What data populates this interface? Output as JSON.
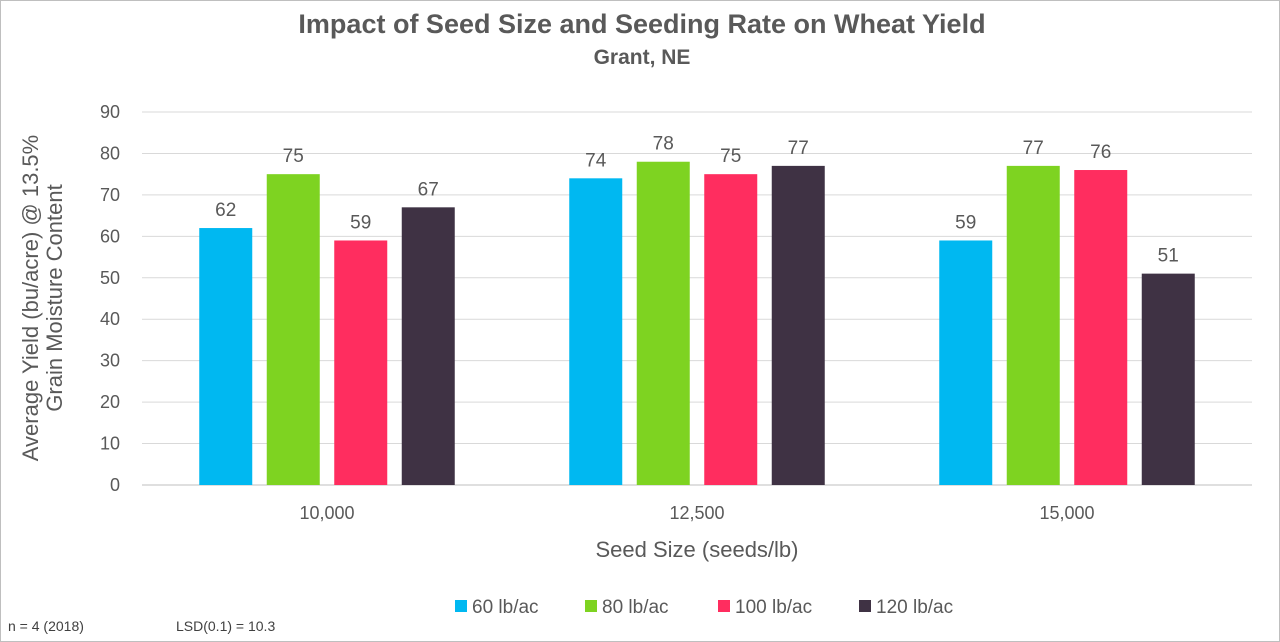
{
  "chart_data": {
    "type": "bar",
    "title": "Impact of Seed Size and Seeding Rate on Wheat Yield",
    "subtitle": "Grant, NE",
    "xlabel": "Seed Size (seeds/lb)",
    "ylabel_line1": "Average Yield (bu/acre) @ 13.5%",
    "ylabel_line2": "Grain Moisture Content",
    "categories": [
      "10,000",
      "12,500",
      "15,000"
    ],
    "ylim": [
      0,
      90
    ],
    "yticks": [
      0,
      10,
      20,
      30,
      40,
      50,
      60,
      70,
      80,
      90
    ],
    "grid": true,
    "legend_position": "bottom",
    "series": [
      {
        "name": "60 lb/ac",
        "color": "#00b8f1",
        "values": [
          62,
          74,
          59
        ]
      },
      {
        "name": "80 lb/ac",
        "color": "#7ed321",
        "values": [
          75,
          78,
          77
        ]
      },
      {
        "name": "100 lb/ac",
        "color": "#ff2d5f",
        "values": [
          59,
          75,
          76
        ]
      },
      {
        "name": "120 lb/ac",
        "color": "#3f3244",
        "values": [
          67,
          77,
          51
        ]
      }
    ],
    "notes": [
      "n = 4 (2018)",
      "LSD(0.1) = 10.3"
    ]
  }
}
